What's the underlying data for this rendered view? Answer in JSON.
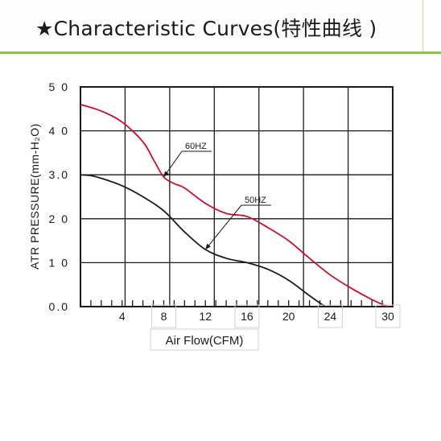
{
  "header": {
    "title": "★Characteristic Curves(特性曲线 )"
  },
  "chart_data": {
    "type": "line",
    "xlabel": "Air Flow(CFM)",
    "ylabel": "ATR PRESSURE(mm-H₂O)",
    "xlim": [
      0,
      30
    ],
    "ylim": [
      0,
      5
    ],
    "x_tick_labels": [
      "4",
      "8",
      "12",
      "16",
      "20",
      "24",
      "30"
    ],
    "y_tick_labels": [
      "0.0",
      "1 0",
      "2 0",
      "3.0",
      "4 0",
      "5 0"
    ],
    "grid": true,
    "series": [
      {
        "name": "60HZ",
        "color": "#c8102e",
        "x": [
          0,
          2,
          4,
          6,
          7,
          8,
          9,
          10,
          12,
          14,
          16,
          18,
          20,
          22,
          24,
          26,
          28,
          29.5
        ],
        "y": [
          4.6,
          4.45,
          4.2,
          3.75,
          3.35,
          2.95,
          2.8,
          2.7,
          2.35,
          2.12,
          2.05,
          1.8,
          1.5,
          1.1,
          0.72,
          0.42,
          0.16,
          0.0
        ]
      },
      {
        "name": "50HZ",
        "color": "#1a1a1a",
        "x": [
          0,
          1,
          2,
          4,
          6,
          8,
          10,
          12,
          14,
          16,
          18,
          20,
          22,
          23.5
        ],
        "y": [
          3.0,
          2.98,
          2.92,
          2.75,
          2.5,
          2.18,
          1.7,
          1.3,
          1.1,
          1.0,
          0.85,
          0.6,
          0.25,
          0.0
        ]
      }
    ],
    "annotations": [
      {
        "text": "60HZ",
        "series": "60HZ",
        "x": 8
      },
      {
        "text": "50HZ",
        "series": "50HZ",
        "x": 12
      }
    ]
  }
}
